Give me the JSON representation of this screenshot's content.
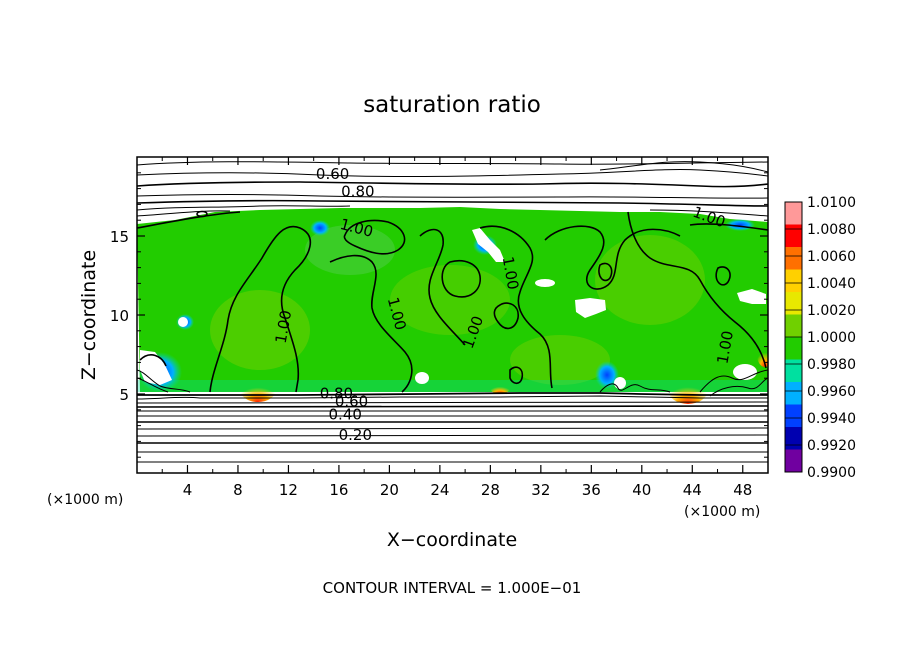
{
  "chart_data": {
    "type": "heatmap",
    "title": "saturation ratio",
    "xlabel": "X−coordinate",
    "ylabel": "Z−coordinate",
    "x_unit": "(×1000 m)",
    "y_unit": "(×1000 m)",
    "xlim": [
      0,
      50
    ],
    "ylim": [
      0,
      20
    ],
    "x_ticks": [
      4,
      8,
      12,
      16,
      20,
      24,
      28,
      32,
      36,
      40,
      44,
      48
    ],
    "y_ticks": [
      5,
      10,
      15
    ],
    "footer": "CONTOUR INTERVAL = 1.000E−01",
    "colorbar": {
      "labels": [
        "1.0100",
        "1.0080",
        "1.0060",
        "1.0040",
        "1.0020",
        "1.0000",
        "0.9980",
        "0.9960",
        "0.9940",
        "0.9920",
        "0.9900"
      ],
      "colors": [
        "#ff9999",
        "#ff0000",
        "#ff7000",
        "#ffd000",
        "#e8e800",
        "#70d000",
        "#22cc00",
        "#00e0a0",
        "#00b0ff",
        "#0040ff",
        "#0000b0",
        "#7000a0"
      ]
    },
    "contour_labels": [
      {
        "text": "0.60",
        "x": 15.5,
        "y": 18.6
      },
      {
        "text": "0.80",
        "x": 17.5,
        "y": 17.5
      },
      {
        "text": "1.00",
        "x": 17.3,
        "y": 15.2
      },
      {
        "text": "1.00",
        "x": 45.2,
        "y": 15.9
      },
      {
        "text": "1.00",
        "x": 29.2,
        "y": 12.6
      },
      {
        "text": "1.00",
        "x": 12.0,
        "y": 9.2
      },
      {
        "text": "1.00",
        "x": 20.2,
        "y": 10.0
      },
      {
        "text": "1.00",
        "x": 27.0,
        "y": 8.8
      },
      {
        "text": "1.00",
        "x": 47.0,
        "y": 7.9
      },
      {
        "text": "0.80",
        "x": 15.8,
        "y": 4.7
      },
      {
        "text": "0.60",
        "x": 17.0,
        "y": 4.2
      },
      {
        "text": "0.40",
        "x": 16.5,
        "y": 3.4
      },
      {
        "text": "0.20",
        "x": 17.3,
        "y": 2.1
      }
    ],
    "regions": {
      "supersaturated_layer_z": [
        5.0,
        16.5
      ],
      "dominant_value_in_layer": 1.0,
      "value_below_layer": "0.20-0.80",
      "value_above_layer": "0.60-0.80"
    }
  }
}
